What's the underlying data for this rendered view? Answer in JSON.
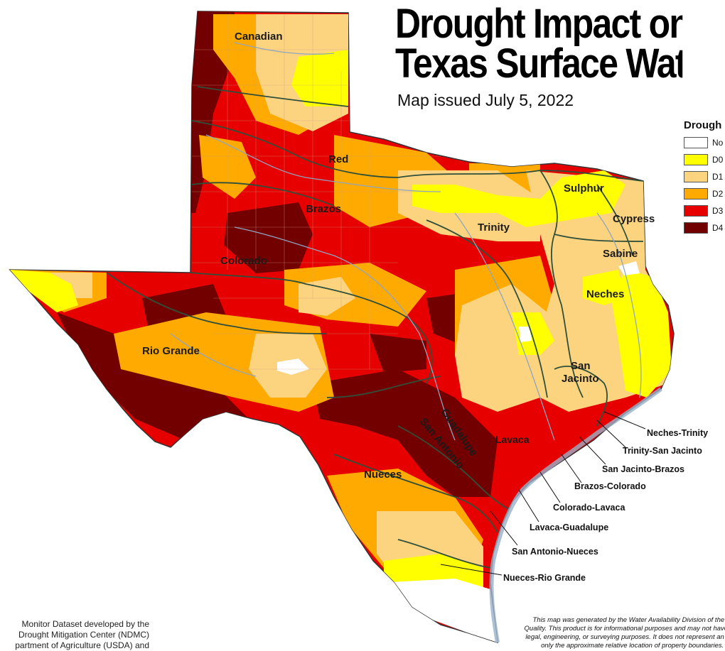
{
  "title_line1": "Drought Impact on",
  "title_line2": "Texas Surface Wate",
  "subtitle": "Map issued July 5, 2022",
  "legend": {
    "title": "Drough",
    "items": [
      {
        "label": "No",
        "color": "#ffffff"
      },
      {
        "label": "D0",
        "color": "#ffff00"
      },
      {
        "label": "D1",
        "color": "#fcd37f"
      },
      {
        "label": "D2",
        "color": "#ffaa00"
      },
      {
        "label": "D3",
        "color": "#e60000"
      },
      {
        "label": "D4",
        "color": "#730000"
      }
    ]
  },
  "basins": [
    "Canadian",
    "Red",
    "Brazos",
    "Colorado",
    "Rio Grande",
    "Trinity",
    "Sulphur",
    "Cypress",
    "Sabine",
    "Neches",
    "San Jacinto",
    "Guadalupe",
    "San Antonio",
    "Lavaca",
    "Nueces"
  ],
  "coastal_basins": [
    "Neches-Trinity",
    "Trinity-San Jacinto",
    "San Jacinto-Brazos",
    "Brazos-Colorado",
    "Colorado-Lavaca",
    "Lavaca-Guadalupe",
    "San Antonio-Nueces",
    "Nueces-Rio Grande"
  ],
  "credit_left": [
    " Monitor Dataset developed by the",
    " Drought Mitigation Center (NDMC)",
    "partment of Agriculture (USDA) and"
  ],
  "disclaimer": [
    "This map was generated by the Water Availability Division of the Te",
    "Quality. This product is for informational purposes and may not have b",
    "legal, engineering, or surveying purposes. It does not represent an on",
    "only the approximate relative location of property boundaries. Fo"
  ],
  "colors": {
    "d0": "#ffff00",
    "d1": "#fcd37f",
    "d2": "#ffaa00",
    "d3": "#e60000",
    "d4": "#730000",
    "none": "#ffffff",
    "basin_line": "#2f4f3a",
    "water": "#9ab0c8"
  }
}
